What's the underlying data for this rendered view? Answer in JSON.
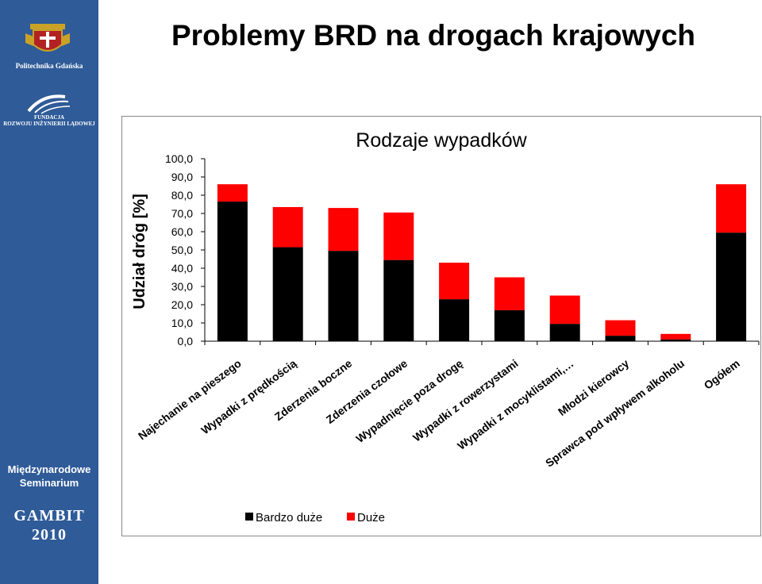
{
  "slide": {
    "title": "Problemy BRD na drogach krajowych"
  },
  "sidebar": {
    "university": "Politechnika Gdańska",
    "foundation_line1": "FUNDACJA",
    "foundation_line2": "ROZWOJU INŻYNIERII LĄDOWEJ",
    "seminar_line1": "Międzynarodowe",
    "seminar_line2": "Seminarium",
    "event": "GAMBIT",
    "year": "2010",
    "color": "#2f5b98"
  },
  "chart_data": {
    "type": "bar",
    "stacked": true,
    "title": "Rodzaje wypadków",
    "ylabel": "Udział dróg [%]",
    "xlabel": "",
    "ylim": [
      0,
      100
    ],
    "yticks": [
      "0,0",
      "10,0",
      "20,0",
      "30,0",
      "40,0",
      "50,0",
      "60,0",
      "70,0",
      "80,0",
      "90,0",
      "100,0"
    ],
    "categories": [
      "Najechanie na pieszego",
      "Wypadki z prędkością",
      "Zderzenia boczne",
      "Zderzenia czołowe",
      "Wypadnięcie poza drogę",
      "Wypadki z rowerzystami",
      "Wypadki z mocyklistami,…",
      "Młodzi kierowcy",
      "Sprawca pod wpływem alkoholu",
      "Ogółem"
    ],
    "series": [
      {
        "name": "Bardzo duże",
        "color": "#000000",
        "values": [
          76.5,
          51.5,
          49.5,
          44.5,
          23,
          17,
          9.5,
          3,
          1,
          59.5
        ]
      },
      {
        "name": "Duże",
        "color": "#ff0000",
        "values": [
          9.5,
          22,
          23.5,
          26,
          20,
          18,
          15.5,
          8.5,
          3,
          26.5
        ]
      }
    ],
    "grid": false,
    "legend": "bottom"
  }
}
